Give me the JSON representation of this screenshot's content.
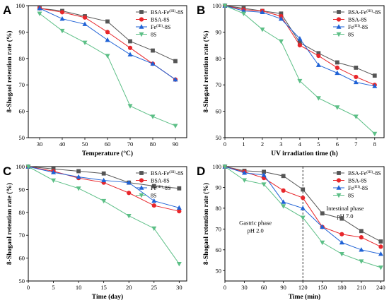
{
  "colors": {
    "BSA-Fe(III)-8S": "#555555",
    "BSA-8S": "#e8262b",
    "Fe(III)-8S": "#1f62d6",
    "8S": "#5cbf86"
  },
  "legend_labels": [
    {
      "key": "BSA-Fe(III)-8S",
      "pre": "BSA-Fe",
      "sup": "(III)",
      "post": "-8S",
      "marker": "square"
    },
    {
      "key": "BSA-8S",
      "pre": "BSA-8S",
      "sup": "",
      "post": "",
      "marker": "circle"
    },
    {
      "key": "Fe(III)-8S",
      "pre": "Fe",
      "sup": "(III)",
      "post": "-8S",
      "marker": "triangle-up"
    },
    {
      "key": "8S",
      "pre": "8S",
      "sup": "",
      "post": "",
      "marker": "triangle-down"
    }
  ],
  "chart_data": [
    {
      "panel": "A",
      "type": "line",
      "xlabel": "Temperature (°C)",
      "ylabel": "8-Shogaol retention rate (%)",
      "x": [
        30,
        40,
        50,
        60,
        70,
        80,
        90
      ],
      "xlim": [
        25,
        95
      ],
      "xticks": [
        30,
        40,
        50,
        60,
        70,
        80,
        90
      ],
      "ylim": [
        50,
        100
      ],
      "yticks": [
        50,
        60,
        70,
        80,
        90,
        100
      ],
      "legend": "top-right",
      "series": [
        {
          "name": "BSA-Fe(III)-8S",
          "values": [
            99,
            98,
            96,
            94,
            86.5,
            83,
            79
          ]
        },
        {
          "name": "BSA-8S",
          "values": [
            99,
            97.5,
            95.5,
            90,
            84,
            78,
            72
          ]
        },
        {
          "name": "Fe(III)-8S",
          "values": [
            99,
            95,
            93,
            87,
            81.5,
            78,
            72
          ]
        },
        {
          "name": "8S",
          "values": [
            97,
            90.5,
            86,
            81,
            62,
            58,
            54.5
          ]
        }
      ]
    },
    {
      "panel": "B",
      "type": "line",
      "xlabel": "UV irradiation time (h)",
      "ylabel": "8-Shogaol retention rate (%)",
      "x": [
        0,
        1,
        2,
        3,
        4,
        5,
        6,
        7,
        8
      ],
      "xlim": [
        0,
        8.5
      ],
      "xticks": [
        0,
        1,
        2,
        3,
        4,
        5,
        6,
        7,
        8
      ],
      "ylim": [
        50,
        100
      ],
      "yticks": [
        50,
        60,
        70,
        80,
        90,
        100
      ],
      "legend": "top-right",
      "series": [
        {
          "name": "BSA-Fe(III)-8S",
          "values": [
            100,
            99,
            98,
            97,
            86,
            82,
            78.5,
            76.5,
            73.5
          ]
        },
        {
          "name": "BSA-8S",
          "values": [
            100,
            98.5,
            98,
            96,
            85,
            81,
            76.5,
            73,
            70
          ]
        },
        {
          "name": "Fe(III)-8S",
          "values": [
            100,
            98,
            97.5,
            95,
            87.5,
            77.5,
            74.5,
            71,
            69.5
          ]
        },
        {
          "name": "8S",
          "values": [
            100,
            97,
            91,
            86.5,
            71.5,
            65,
            61.5,
            58,
            51.5
          ]
        }
      ]
    },
    {
      "panel": "C",
      "type": "line",
      "xlabel": "Time (day)",
      "ylabel": "8-Shogaol retention rate (%)",
      "x": [
        0,
        5,
        10,
        15,
        20,
        25,
        30
      ],
      "xlim": [
        0,
        31.5
      ],
      "xticks": [
        0,
        5,
        10,
        15,
        20,
        25,
        30
      ],
      "ylim": [
        50,
        100
      ],
      "yticks": [
        50,
        60,
        70,
        80,
        90,
        100
      ],
      "legend": "top-right",
      "series": [
        {
          "name": "BSA-Fe(III)-8S",
          "values": [
            100,
            99,
            98,
            97,
            93,
            91.5,
            90.5
          ]
        },
        {
          "name": "BSA-8S",
          "values": [
            100,
            98,
            95,
            93,
            88.5,
            83,
            80.5
          ]
        },
        {
          "name": "Fe(III)-8S",
          "values": [
            100,
            97.5,
            95.5,
            94,
            93,
            85,
            82
          ]
        },
        {
          "name": "8S",
          "values": [
            100,
            94,
            90.5,
            85,
            78.5,
            73,
            57.5
          ]
        }
      ]
    },
    {
      "panel": "D",
      "type": "line",
      "xlabel": "Time (min)",
      "ylabel": "8-Shogaol retention rate (%)",
      "x": [
        0,
        30,
        60,
        90,
        120,
        150,
        180,
        210,
        240
      ],
      "xlim": [
        0,
        245
      ],
      "xticks": [
        0,
        30,
        60,
        90,
        120,
        150,
        180,
        210,
        240
      ],
      "ylim": [
        45,
        100
      ],
      "yticks": [
        50,
        60,
        70,
        80,
        90,
        100
      ],
      "legend": "top-right",
      "vline": 120,
      "annotations": [
        {
          "lines": [
            "Gastric phase",
            "pH 2.0"
          ],
          "x": 47,
          "y": 72
        },
        {
          "lines": [
            "Intestinal phase",
            "pH 7.0"
          ],
          "x": 185,
          "y": 79
        }
      ],
      "series": [
        {
          "name": "BSA-Fe(III)-8S",
          "values": [
            100,
            98,
            97.5,
            95.5,
            89,
            77.5,
            75,
            69,
            64
          ]
        },
        {
          "name": "BSA-8S",
          "values": [
            100,
            97.5,
            94.5,
            88.5,
            85,
            71,
            67.5,
            66,
            61.5
          ]
        },
        {
          "name": "Fe(III)-8S",
          "values": [
            100,
            97,
            96,
            83,
            80,
            71,
            63.5,
            60,
            58
          ]
        },
        {
          "name": "8S",
          "values": [
            100,
            93.5,
            91.5,
            81,
            75.5,
            63.5,
            58,
            54.5,
            51.5
          ]
        }
      ]
    }
  ]
}
